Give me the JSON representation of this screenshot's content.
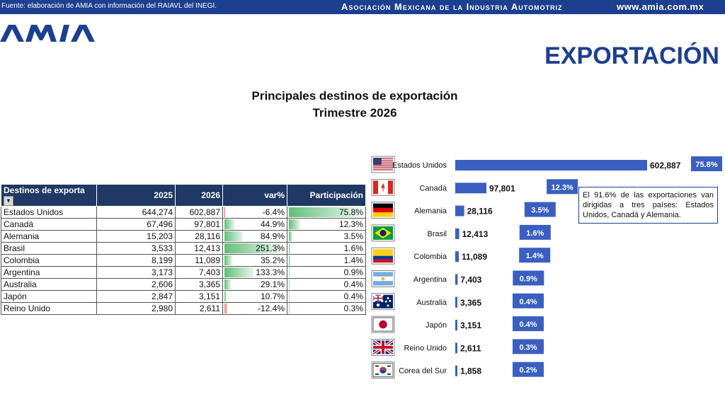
{
  "header": {
    "source": "Fuente: elaboración de AMIA con información del RAIAVL del INEGI.",
    "organization": "Asociación Mexicana de la Industria Automotriz",
    "website": "www.amia.com.mx",
    "logo_text": "AMIA"
  },
  "section_title": "EXPORTACIÓN",
  "title_line1": "Principales destinos de exportación",
  "title_line2": "Trimestre 2026",
  "table": {
    "headers": [
      "Destinos de exportación",
      "2025",
      "2026",
      "var%",
      "Participación"
    ],
    "rows": [
      {
        "name": "Estados Unidos",
        "y2025": "644,274",
        "y2026": "602,887",
        "var": "-6.4%",
        "share": "75.8%",
        "var_num": -6.4,
        "share_num": 75.8
      },
      {
        "name": "Canadá",
        "y2025": "67,496",
        "y2026": "97,801",
        "var": "44.9%",
        "share": "12.3%",
        "var_num": 44.9,
        "share_num": 12.3
      },
      {
        "name": "Alemania",
        "y2025": "15,203",
        "y2026": "28,116",
        "var": "84.9%",
        "share": "3.5%",
        "var_num": 84.9,
        "share_num": 3.5
      },
      {
        "name": "Brasil",
        "y2025": "3,533",
        "y2026": "12,413",
        "var": "251.3%",
        "share": "1.6%",
        "var_num": 251.3,
        "share_num": 1.6
      },
      {
        "name": "Colombia",
        "y2025": "8,199",
        "y2026": "11,089",
        "var": "35.2%",
        "share": "1.4%",
        "var_num": 35.2,
        "share_num": 1.4
      },
      {
        "name": "Argentina",
        "y2025": "3,173",
        "y2026": "7,403",
        "var": "133.3%",
        "share": "0.9%",
        "var_num": 133.3,
        "share_num": 0.9
      },
      {
        "name": "Australia",
        "y2025": "2,606",
        "y2026": "3,365",
        "var": "29.1%",
        "share": "0.4%",
        "var_num": 29.1,
        "share_num": 0.4
      },
      {
        "name": "Japón",
        "y2025": "2,847",
        "y2026": "3,151",
        "var": "10.7%",
        "share": "0.4%",
        "var_num": 10.7,
        "share_num": 0.4
      },
      {
        "name": "Reino Unido",
        "y2025": "2,980",
        "y2026": "2,611",
        "var": "-12.4%",
        "share": "0.3%",
        "var_num": -12.4,
        "share_num": 0.3
      }
    ]
  },
  "chart_data": {
    "type": "bar",
    "orientation": "horizontal",
    "categories": [
      "Estados Unidos",
      "Canadá",
      "Alemania",
      "Brasil",
      "Colombia",
      "Argentina",
      "Australia",
      "Japón",
      "Reino Unido",
      "Corea del Sur"
    ],
    "values": [
      602887,
      97801,
      28116,
      12413,
      11089,
      7403,
      3365,
      3151,
      2611,
      1858
    ],
    "value_labels": [
      "602,887",
      "97,801",
      "28,116",
      "12,413",
      "11,089",
      "7,403",
      "3,365",
      "3,151",
      "2,611",
      "1,858"
    ],
    "share_labels": [
      "75.8%",
      "12.3%",
      "3.5%",
      "1.6%",
      "1.4%",
      "0.9%",
      "0.4%",
      "0.4%",
      "0.3%",
      "0.2%"
    ],
    "flags": [
      "us-flag",
      "canada-flag",
      "germany-flag",
      "brazil-flag",
      "colombia-flag",
      "argentina-flag",
      "australia-flag",
      "japan-flag",
      "uk-flag",
      "korea-flag"
    ],
    "bar_color": "#3a5fc0",
    "share_box_color": "#3a5fc0",
    "grid": false,
    "legend": "none"
  },
  "note": "El 91.6% de las exportaciones van dirigidas a tres países: Estados Unidos, Canadá y Alemania.",
  "colors": {
    "primary": "#1d3f8f",
    "table_header": "#1f3864",
    "databar_positive": "#63be7b",
    "databar_negative": "#f8696b"
  }
}
